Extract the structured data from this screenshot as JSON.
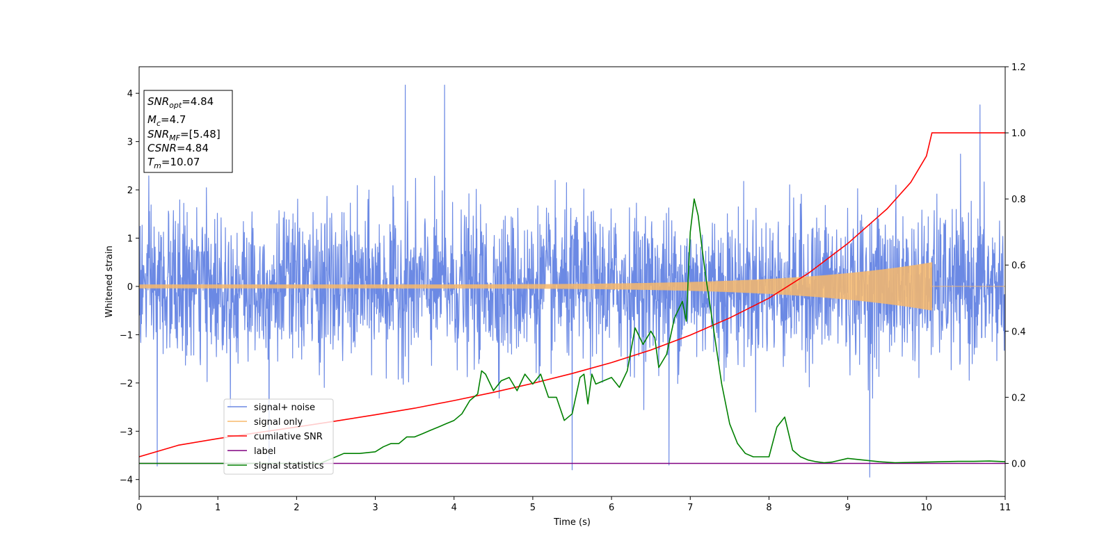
{
  "chart_data": {
    "type": "line",
    "xlabel": "Time (s)",
    "ylabel": "Whitened strain",
    "xlim": [
      0,
      11
    ],
    "ylim_left": [
      -4.35,
      4.55
    ],
    "ylim_right": [
      -0.1,
      1.2
    ],
    "x_ticks": [
      0,
      1,
      2,
      3,
      4,
      5,
      6,
      7,
      8,
      9,
      10,
      11
    ],
    "y_ticks_left": [
      -4,
      -3,
      -2,
      -1,
      0,
      1,
      2,
      3,
      4
    ],
    "y_ticks_right": [
      "0.0",
      "0.2",
      "0.4",
      "0.6",
      "0.8",
      "1.0",
      "1.2"
    ],
    "grid": false,
    "legend_position": "lower-left",
    "info_box": {
      "snr_opt": "=4.84",
      "mc": "=4.7",
      "snr_mf": "=[5.48]",
      "csnr": "=4.84",
      "tm": "=10.07"
    },
    "series": [
      {
        "name": "signal+ noise",
        "axis": "left",
        "color": "#6b89e4",
        "style": "noise",
        "x_range": [
          0,
          11
        ],
        "typical_range": [
          -2.5,
          2.5
        ],
        "max_value": 4.17,
        "min_value": -3.95,
        "peaks": [
          [
            3.38,
            4.17
          ],
          [
            3.88,
            4.17
          ],
          [
            10.68,
            3.76
          ],
          [
            5.5,
            -3.8
          ],
          [
            9.28,
            -3.95
          ],
          [
            0.23,
            -3.72
          ],
          [
            6.73,
            -3.7
          ],
          [
            1.65,
            -3.8
          ]
        ]
      },
      {
        "name": "signal only",
        "axis": "left",
        "color": "#f7b86b",
        "style": "chirp",
        "x_range": [
          0,
          10.07
        ],
        "amplitude_start": 0.04,
        "amplitude_end": 0.5,
        "merger_time": 10.07
      },
      {
        "name": "cumilative SNR",
        "axis": "right",
        "color": "#ff0000",
        "x": [
          0,
          0.5,
          1,
          1.5,
          2,
          2.5,
          3,
          3.5,
          4,
          4.5,
          5,
          5.5,
          6,
          6.5,
          7,
          7.5,
          8,
          8.5,
          9,
          9.5,
          9.8,
          10.0,
          10.07,
          11
        ],
        "y": [
          0.02,
          0.055,
          0.075,
          0.093,
          0.11,
          0.128,
          0.147,
          0.167,
          0.19,
          0.215,
          0.242,
          0.272,
          0.305,
          0.343,
          0.388,
          0.44,
          0.5,
          0.575,
          0.665,
          0.77,
          0.85,
          0.93,
          1.0,
          1.0
        ]
      },
      {
        "name": "label",
        "axis": "right",
        "color": "#800080",
        "x": [
          0,
          11
        ],
        "y": [
          0,
          0
        ]
      },
      {
        "name": "signal statistics",
        "axis": "right",
        "color": "#008000",
        "x": [
          0,
          2.3,
          2.5,
          2.6,
          2.8,
          3.0,
          3.1,
          3.2,
          3.3,
          3.4,
          3.5,
          3.6,
          3.7,
          3.8,
          3.9,
          4.0,
          4.1,
          4.2,
          4.3,
          4.35,
          4.4,
          4.5,
          4.6,
          4.7,
          4.8,
          4.9,
          5.0,
          5.1,
          5.2,
          5.3,
          5.4,
          5.5,
          5.6,
          5.65,
          5.7,
          5.75,
          5.8,
          5.9,
          6.0,
          6.1,
          6.2,
          6.3,
          6.4,
          6.5,
          6.55,
          6.6,
          6.7,
          6.8,
          6.9,
          6.95,
          7.0,
          7.05,
          7.1,
          7.15,
          7.2,
          7.3,
          7.4,
          7.5,
          7.6,
          7.7,
          7.8,
          7.9,
          8.0,
          8.1,
          8.2,
          8.3,
          8.4,
          8.5,
          8.6,
          8.7,
          8.8,
          9.0,
          9.2,
          9.4,
          9.6,
          9.8,
          10.0,
          10.2,
          10.4,
          10.6,
          10.8,
          11.0
        ],
        "y": [
          0,
          0,
          0.02,
          0.03,
          0.03,
          0.035,
          0.05,
          0.06,
          0.06,
          0.08,
          0.08,
          0.09,
          0.1,
          0.11,
          0.12,
          0.13,
          0.15,
          0.19,
          0.21,
          0.28,
          0.27,
          0.22,
          0.25,
          0.26,
          0.22,
          0.27,
          0.24,
          0.27,
          0.2,
          0.2,
          0.13,
          0.15,
          0.26,
          0.27,
          0.18,
          0.27,
          0.24,
          0.25,
          0.26,
          0.23,
          0.28,
          0.41,
          0.36,
          0.4,
          0.38,
          0.29,
          0.33,
          0.44,
          0.49,
          0.43,
          0.7,
          0.8,
          0.75,
          0.65,
          0.56,
          0.4,
          0.24,
          0.12,
          0.06,
          0.03,
          0.02,
          0.02,
          0.02,
          0.11,
          0.14,
          0.04,
          0.02,
          0.01,
          0.005,
          0.002,
          0.004,
          0.015,
          0.01,
          0.005,
          0.002,
          0.003,
          0.004,
          0.005,
          0.006,
          0.006,
          0.007,
          0.005
        ]
      }
    ]
  }
}
